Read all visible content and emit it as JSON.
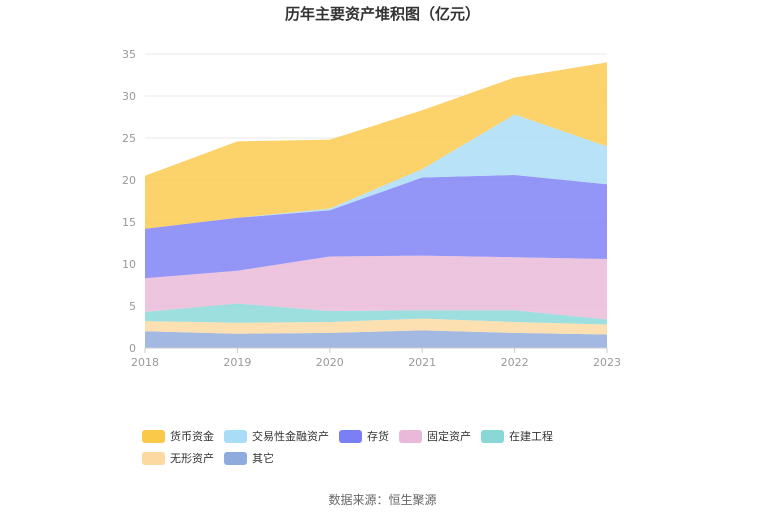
{
  "chart_data": {
    "type": "area",
    "stacked": true,
    "title": "历年主要资产堆积图（亿元）",
    "source": "数据来源：恒生聚源",
    "x": [
      "2018",
      "2019",
      "2020",
      "2021",
      "2022",
      "2023"
    ],
    "ylim": [
      0,
      35
    ],
    "yticks": [
      "0",
      "5",
      "10",
      "15",
      "20",
      "25",
      "30",
      "35"
    ],
    "grid": true,
    "legend_position": "bottom",
    "series": [
      {
        "name": "其它",
        "color": "#8faadc",
        "values": [
          2.0,
          1.7,
          1.8,
          2.1,
          1.8,
          1.6
        ]
      },
      {
        "name": "无形资产",
        "color": "#fcd9a0",
        "values": [
          1.2,
          1.3,
          1.3,
          1.4,
          1.3,
          1.2
        ]
      },
      {
        "name": "在建工程",
        "color": "#88d8d8",
        "values": [
          1.1,
          2.3,
          1.3,
          1.0,
          1.4,
          0.6
        ]
      },
      {
        "name": "固定资产",
        "color": "#eab8d8",
        "values": [
          4.0,
          3.9,
          6.5,
          6.5,
          6.3,
          7.2
        ]
      },
      {
        "name": "存货",
        "color": "#7b7ff5",
        "values": [
          5.9,
          6.3,
          5.5,
          9.3,
          9.8,
          8.9
        ]
      },
      {
        "name": "交易性金融资产",
        "color": "#a8dcf7",
        "values": [
          0.0,
          0.0,
          0.2,
          1.0,
          7.2,
          4.5
        ]
      },
      {
        "name": "货币资金",
        "color": "#fbc94a",
        "values": [
          6.3,
          9.1,
          8.2,
          7.0,
          4.4,
          10.0
        ]
      }
    ],
    "legend_order": [
      "货币资金",
      "交易性金融资产",
      "存货",
      "固定资产",
      "在建工程",
      "无形资产",
      "其它"
    ]
  }
}
